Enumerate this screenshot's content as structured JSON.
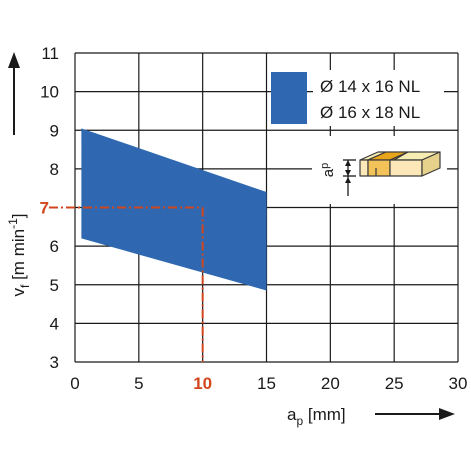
{
  "chart_data": {
    "type": "area",
    "x_axis": {
      "min": 0,
      "max": 30,
      "ticks": [
        "0",
        "5",
        "10",
        "15",
        "20",
        "25",
        "30"
      ]
    },
    "y_axis": {
      "min": 3,
      "max": 11,
      "ticks": [
        "3",
        "4",
        "5",
        "6",
        "7",
        "8",
        "9",
        "10",
        "11"
      ]
    },
    "xlabel": {
      "main": "a",
      "sub": "p",
      "unit": " [mm]"
    },
    "ylabel": {
      "main": "v",
      "sub": "f",
      "unit": " [m min",
      "sup": "-1",
      "close": "]"
    },
    "grid": true,
    "series": [
      {
        "legend_labels": [
          "Ø 14 x 16 NL",
          "Ø 16 x 18 NL"
        ],
        "color": "#2f68b0",
        "upper": [
          {
            "x": 0.5,
            "y": 9.05
          },
          {
            "x": 15,
            "y": 7.4
          }
        ],
        "lower": [
          {
            "x": 0.5,
            "y": 6.2
          },
          {
            "x": 15,
            "y": 4.85
          }
        ]
      }
    ],
    "reading": {
      "x": 10,
      "y": 7,
      "x_label": "10",
      "y_label": "7",
      "color": "#d2461e"
    },
    "inset": {
      "label_main": "a",
      "label_sub": "p"
    },
    "legend_position": "top-right"
  }
}
